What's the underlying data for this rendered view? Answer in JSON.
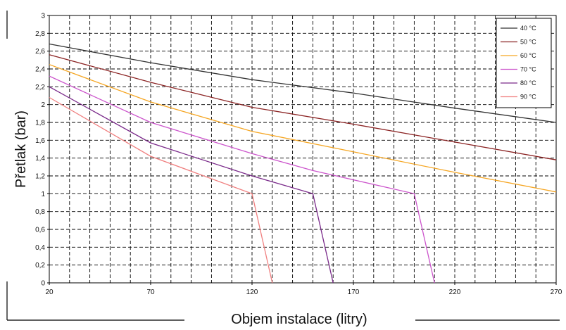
{
  "chart_data": {
    "type": "line",
    "title": "",
    "xlabel": "Objem instalace (litry)",
    "ylabel": "Přetlak (bar)",
    "xlim": [
      20,
      270
    ],
    "ylim": [
      0,
      3
    ],
    "x_ticks": [
      20,
      70,
      120,
      170,
      220,
      270
    ],
    "x_tick_labels": [
      "20",
      "70",
      "120",
      "170",
      "220",
      "270"
    ],
    "y_ticks": [
      0,
      0.2,
      0.4,
      0.6,
      0.8,
      1,
      1.2,
      1.4,
      1.6,
      1.8,
      2,
      2.2,
      2.4,
      2.6,
      2.8,
      3
    ],
    "y_tick_labels": [
      "0",
      "0,2",
      "0,4",
      "0,6",
      "0,8",
      "1",
      "1,2",
      "1,4",
      "1,6",
      "1,8",
      "2",
      "2,2",
      "2,4",
      "2,6",
      "2,8",
      "3"
    ],
    "grid": true,
    "legend_position": "top-right",
    "series": [
      {
        "name": "40 °C",
        "color": "#333333",
        "points": [
          [
            20,
            2.68
          ],
          [
            70,
            2.47
          ],
          [
            120,
            2.28
          ],
          [
            170,
            2.13
          ],
          [
            220,
            1.96
          ],
          [
            270,
            1.8
          ]
        ]
      },
      {
        "name": "50 °C",
        "color": "#8b2323",
        "points": [
          [
            20,
            2.56
          ],
          [
            70,
            2.25
          ],
          [
            120,
            1.97
          ],
          [
            170,
            1.78
          ],
          [
            220,
            1.58
          ],
          [
            270,
            1.38
          ]
        ]
      },
      {
        "name": "60 °C",
        "color": "#f5a623",
        "points": [
          [
            20,
            2.45
          ],
          [
            70,
            2.03
          ],
          [
            120,
            1.7
          ],
          [
            170,
            1.47
          ],
          [
            220,
            1.24
          ],
          [
            270,
            1.02
          ]
        ]
      },
      {
        "name": "70 °C",
        "color": "#cc55cc",
        "points": [
          [
            20,
            2.32
          ],
          [
            70,
            1.8
          ],
          [
            120,
            1.45
          ],
          [
            150,
            1.26
          ],
          [
            200,
            1.0
          ],
          [
            210,
            0
          ]
        ]
      },
      {
        "name": "80 °C",
        "color": "#7a2a8a",
        "points": [
          [
            20,
            2.2
          ],
          [
            70,
            1.57
          ],
          [
            120,
            1.2
          ],
          [
            150,
            1.0
          ],
          [
            160,
            0
          ]
        ]
      },
      {
        "name": "90 °C",
        "color": "#f08080",
        "points": [
          [
            20,
            2.08
          ],
          [
            70,
            1.42
          ],
          [
            120,
            1.0
          ],
          [
            130,
            0
          ]
        ]
      }
    ]
  }
}
